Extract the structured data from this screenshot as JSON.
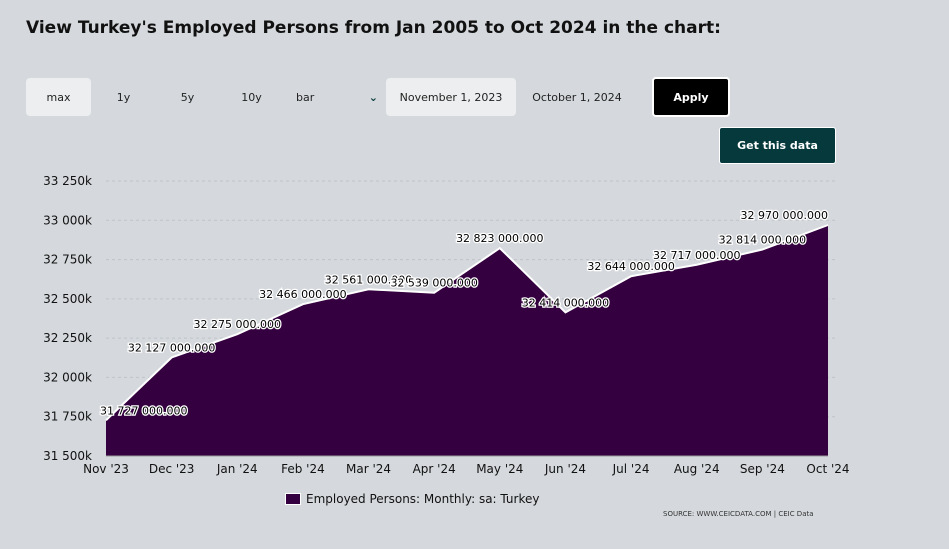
{
  "title": "View Turkey's Employed Persons from Jan 2005 to Oct 2024 in the chart:",
  "controls": {
    "range_buttons": [
      "max",
      "1y",
      "5y",
      "10y"
    ],
    "chart_type": "bar",
    "start_date": "November 1, 2023",
    "end_date": "October 1, 2024",
    "apply_label": "Apply",
    "get_data_label": "Get this data"
  },
  "source": "SOURCE: WWW.CEICDATA.COM | CEIC Data",
  "colors": {
    "area": "#350040",
    "background": "#d5d9dd",
    "button_dark": "#05393b"
  },
  "chart_data": {
    "type": "area",
    "categories": [
      "Nov '23",
      "Dec '23",
      "Jan '24",
      "Feb '24",
      "Mar '24",
      "Apr '24",
      "May '24",
      "Jun '24",
      "Jul '24",
      "Aug '24",
      "Sep '24",
      "Oct '24"
    ],
    "series": [
      {
        "name": "Employed Persons: Monthly: sa: Turkey",
        "values": [
          31727000,
          32127000,
          32275000,
          32466000,
          32561000,
          32539000,
          32823000,
          32414000,
          32644000,
          32717000,
          32814000,
          32970000
        ]
      }
    ],
    "data_labels": [
      "31 727 000.000",
      "32 127 000.000",
      "32 275 000.000",
      "32 466 000.000",
      "32 561 000.000",
      "32 539 000.000",
      "32 823 000.000",
      "32 414 000.000",
      "32 644 000.000",
      "32 717 000.000",
      "32 814 000.000",
      "32 970 000.000"
    ],
    "y_ticks": [
      "31 500k",
      "31 750k",
      "32 000k",
      "32 250k",
      "32 500k",
      "32 750k",
      "33 000k",
      "33 250k"
    ],
    "ylim": [
      31500000,
      33250000
    ],
    "legend": "bottom",
    "grid": true
  }
}
